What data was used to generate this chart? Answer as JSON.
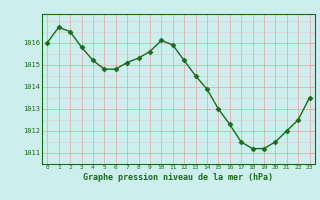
{
  "x": [
    0,
    1,
    2,
    3,
    4,
    5,
    6,
    7,
    8,
    9,
    10,
    11,
    12,
    13,
    14,
    15,
    16,
    17,
    18,
    19,
    20,
    21,
    22,
    23
  ],
  "y": [
    1016.0,
    1016.7,
    1016.5,
    1015.8,
    1015.2,
    1014.8,
    1014.8,
    1015.1,
    1015.3,
    1015.6,
    1016.1,
    1015.9,
    1015.2,
    1014.5,
    1013.9,
    1013.0,
    1012.3,
    1011.5,
    1011.2,
    1011.2,
    1011.5,
    1012.0,
    1012.5,
    1013.5
  ],
  "line_color": "#1a6b1a",
  "marker": "D",
  "marker_size": 2.5,
  "bg_color": "#cceeed",
  "grid_major_color": "#e8a0a0",
  "grid_minor_color": "#e8c8c8",
  "xlabel": "Graphe pression niveau de la mer (hPa)",
  "xlabel_color": "#1a6b1a",
  "tick_color": "#1a6b1a",
  "ylim": [
    1010.5,
    1017.3
  ],
  "yticks": [
    1011,
    1012,
    1013,
    1014,
    1015,
    1016
  ],
  "xticks": [
    0,
    1,
    2,
    3,
    4,
    5,
    6,
    7,
    8,
    9,
    10,
    11,
    12,
    13,
    14,
    15,
    16,
    17,
    18,
    19,
    20,
    21,
    22,
    23
  ],
  "line_width": 1.0,
  "spine_color": "#1a6b1a"
}
